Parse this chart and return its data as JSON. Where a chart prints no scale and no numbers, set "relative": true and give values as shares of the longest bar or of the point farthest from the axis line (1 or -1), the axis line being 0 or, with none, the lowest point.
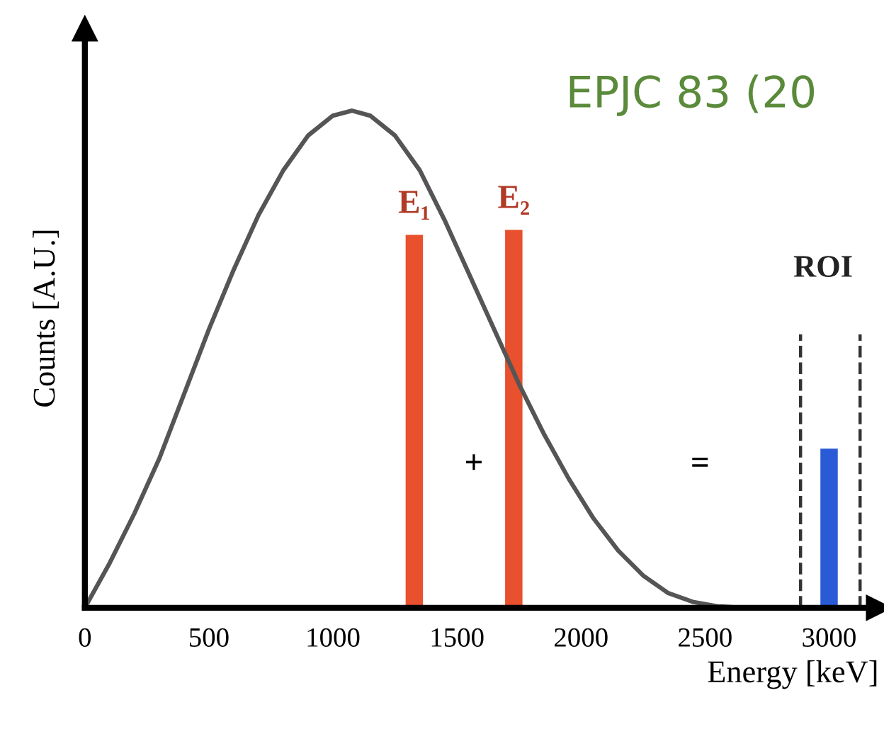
{
  "chart_data": {
    "type": "line",
    "relative": true,
    "xlabel": "Energy [keV]",
    "ylabel": "Counts [A.U.]",
    "xlim": [
      0,
      3200
    ],
    "xticks": [
      0,
      500,
      1000,
      1500,
      2000,
      2500,
      3000
    ],
    "tick_labels": "x",
    "grid": false,
    "series": [
      {
        "color": "#555555",
        "x": [
          0,
          100,
          200,
          300,
          400,
          500,
          600,
          700,
          800,
          900,
          1000,
          1076,
          1150,
          1250,
          1350,
          1450,
          1550,
          1650,
          1750,
          1850,
          1950,
          2050,
          2150,
          2250,
          2350,
          2450,
          2550,
          2650
        ],
        "values": [
          0,
          0.09,
          0.19,
          0.3,
          0.43,
          0.56,
          0.68,
          0.79,
          0.88,
          0.95,
          0.99,
          1.0,
          0.99,
          0.95,
          0.88,
          0.78,
          0.67,
          0.56,
          0.45,
          0.35,
          0.26,
          0.18,
          0.115,
          0.065,
          0.03,
          0.012,
          0.003,
          0
        ]
      },
      {
        "type": "bar",
        "name": "E₁",
        "color": "#e8502e",
        "x": [
          1328
        ],
        "values": [
          0.75
        ]
      },
      {
        "type": "bar",
        "name": "E₂",
        "color": "#e8502e",
        "x": [
          1729
        ],
        "values": [
          0.76
        ]
      },
      {
        "type": "bar",
        "color": "#2a5bd6",
        "x": [
          3000
        ],
        "values": [
          0.32
        ]
      }
    ],
    "ref_lines": [
      {
        "axis": "x",
        "value": 2885,
        "line_style": "dashed",
        "color": "#333333"
      },
      {
        "axis": "x",
        "value": 3125,
        "line_style": "dashed",
        "color": "#333333"
      }
    ],
    "annotations": [
      "+",
      "=",
      "ROI",
      "EPJC 83 (20"
    ]
  }
}
